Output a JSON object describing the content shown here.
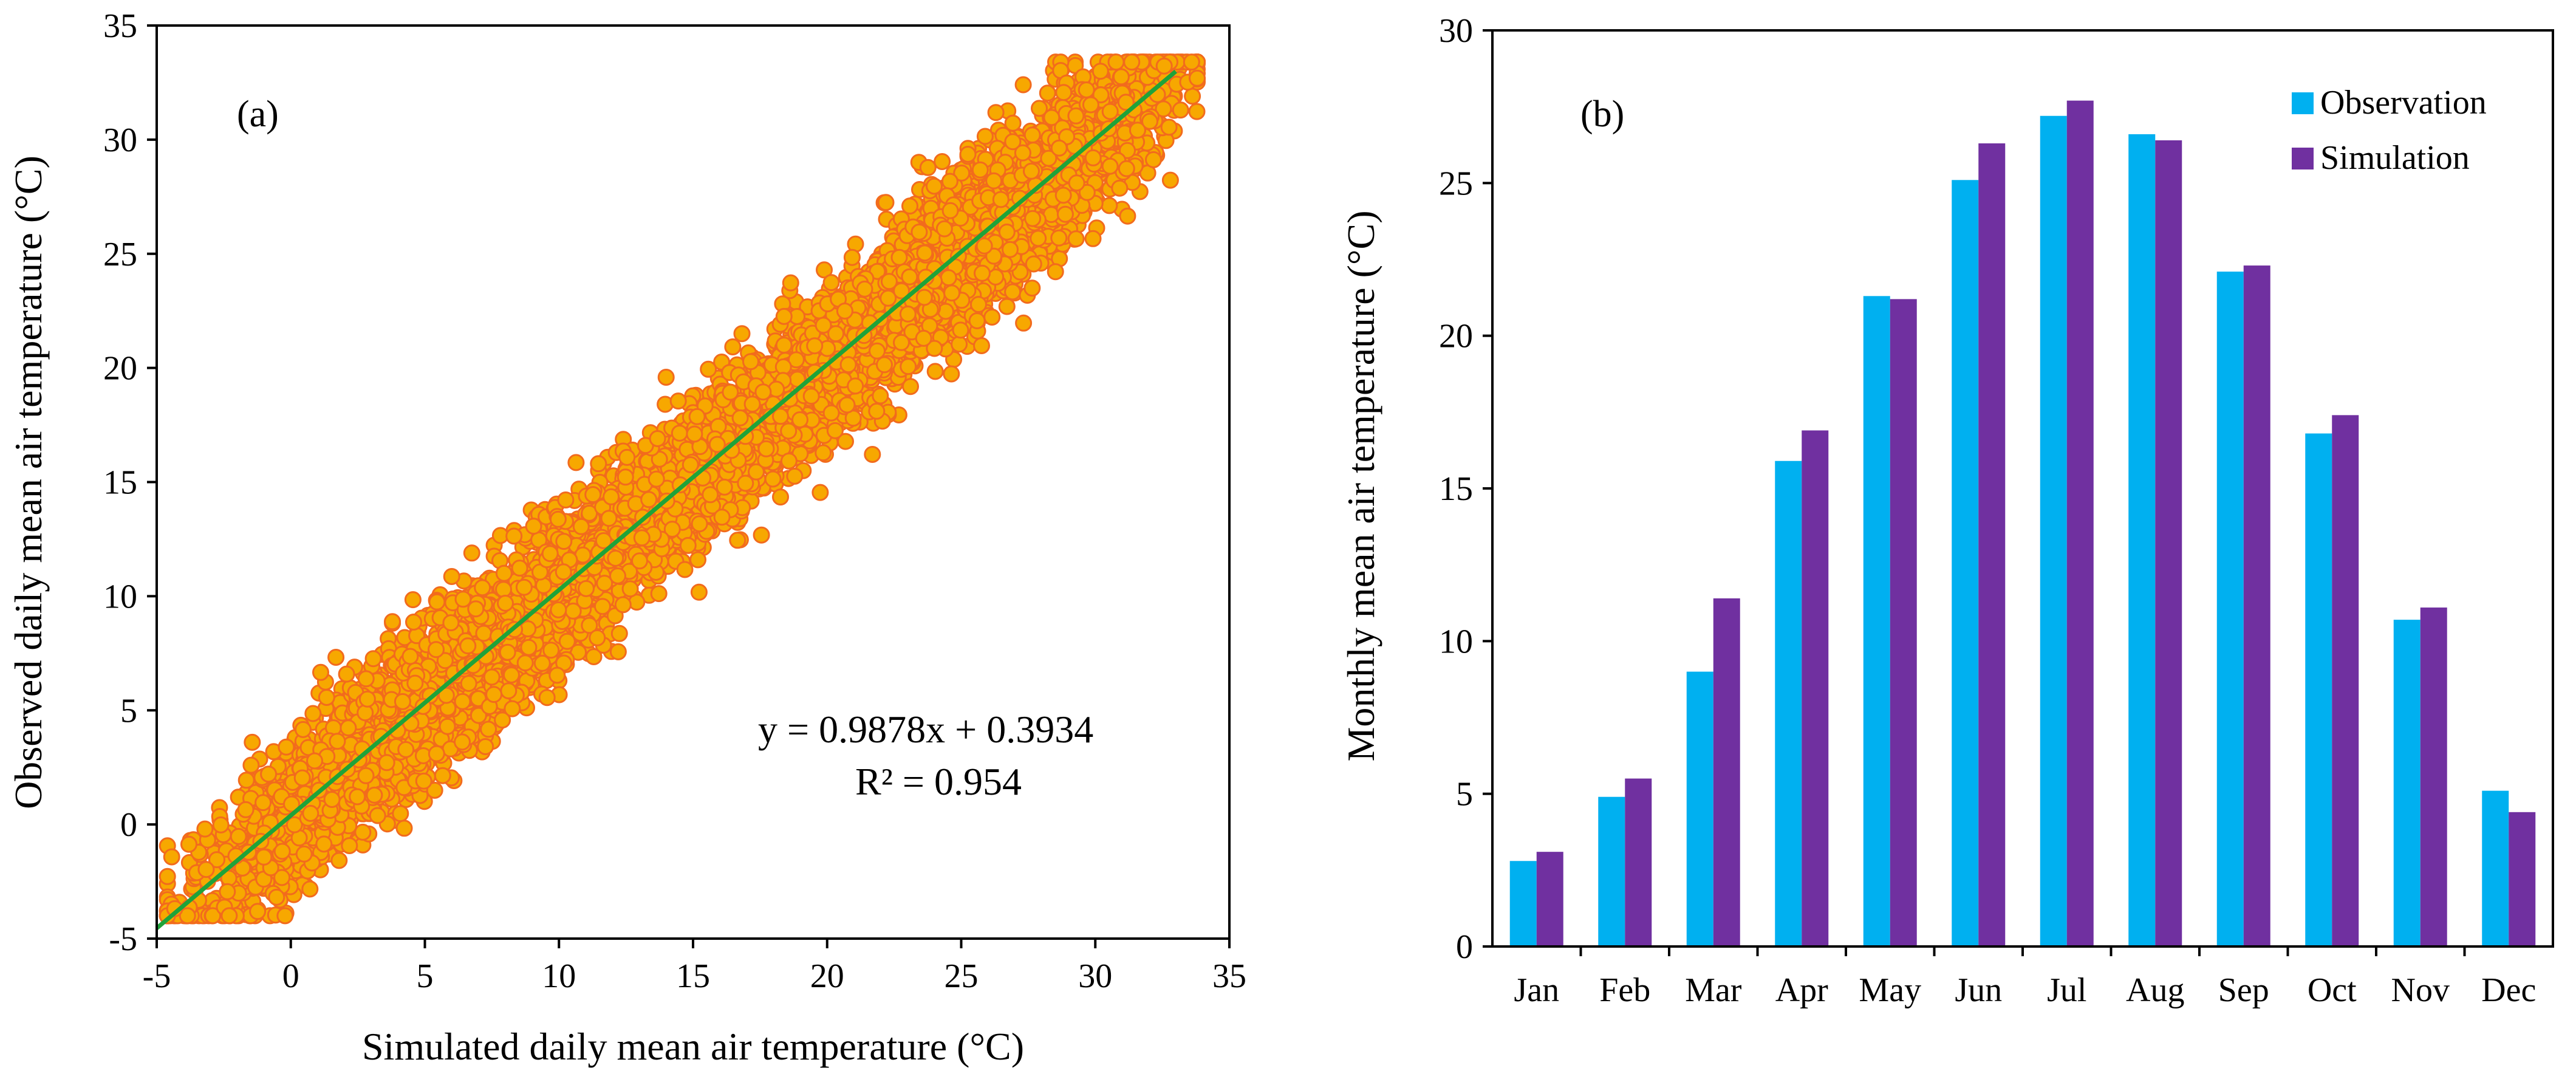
{
  "chart_data": [
    {
      "type": "scatter",
      "panel_label": "(a)",
      "xlabel": "Simulated daily mean air temperature  (°C)",
      "ylabel": "Observed daily mean air temperature  (°C)",
      "xlim": [
        -5,
        35
      ],
      "ylim": [
        -5,
        35
      ],
      "xticks": [
        -5,
        0,
        5,
        10,
        15,
        20,
        25,
        30,
        35
      ],
      "yticks": [
        -5,
        0,
        5,
        10,
        15,
        20,
        25,
        30,
        35
      ],
      "point_count_estimate": 7300,
      "point_color": "#F7A800",
      "point_edge_color": "#F26B1D",
      "trendline": {
        "slope": 0.9878,
        "intercept": 0.3934,
        "x_range": [
          -5,
          33
        ],
        "color": "#1FA33A",
        "equation": "y = 0.9878x + 0.3934",
        "r_squared": "R² = 0.954"
      },
      "grid": false
    },
    {
      "type": "bar",
      "panel_label": "(b)",
      "ylabel": "Monthly mean air temperature  (°C)",
      "ylim": [
        0,
        30
      ],
      "yticks": [
        0,
        5,
        10,
        15,
        20,
        25,
        30
      ],
      "categories": [
        "Jan",
        "Feb",
        "Mar",
        "Apr",
        "May",
        "Jun",
        "Jul",
        "Aug",
        "Sep",
        "Oct",
        "Nov",
        "Dec"
      ],
      "series": [
        {
          "name": "Observation",
          "color": "#00B0F0",
          "values": [
            2.8,
            4.9,
            9.0,
            15.9,
            21.3,
            25.1,
            27.2,
            26.6,
            22.1,
            16.8,
            10.7,
            5.1
          ]
        },
        {
          "name": "Simulation",
          "color": "#7030A0",
          "values": [
            3.1,
            5.5,
            11.4,
            16.9,
            21.2,
            26.3,
            27.7,
            26.4,
            22.3,
            17.4,
            11.1,
            4.4
          ]
        }
      ],
      "legend_position": "top-right",
      "grid": false
    }
  ]
}
